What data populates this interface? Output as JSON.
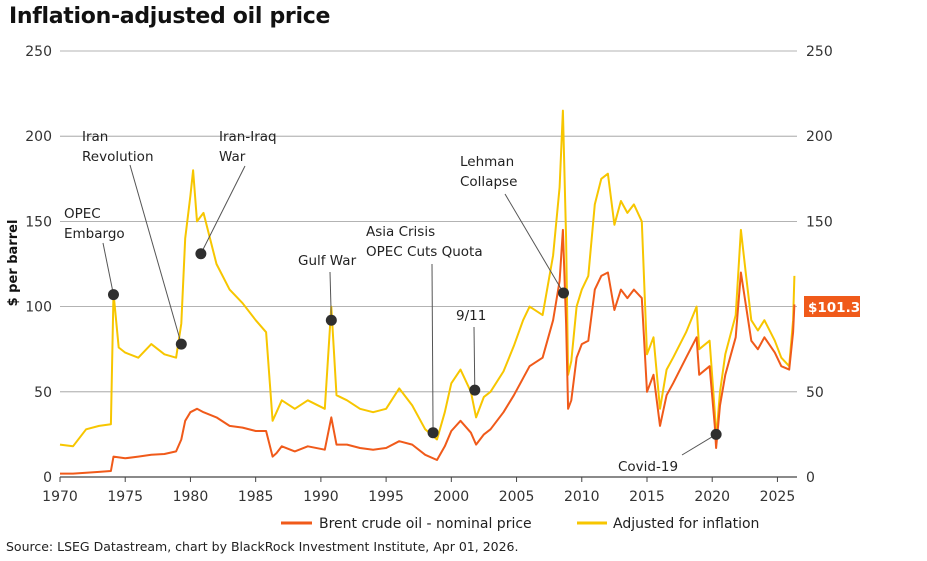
{
  "title": "Inflation-adjusted oil price",
  "source": "Source: LSEG Datastream, chart by BlackRock Investment Institute, Apr 01, 2026.",
  "colors": {
    "nominal": "#f05a1a",
    "adjusted": "#f7c600",
    "grid": "#9a9a9a",
    "axis": "#444444",
    "marker": "#2f2f2f",
    "tag": "#f05a1a"
  },
  "chart_data": {
    "type": "line",
    "title": "Inflation-adjusted oil price",
    "xlabel": "",
    "ylabel": "$ per barrel",
    "xlim": [
      1970,
      2026.5
    ],
    "ylim": [
      0,
      250
    ],
    "x_ticks": [
      1970,
      1975,
      1980,
      1985,
      1990,
      1995,
      2000,
      2005,
      2010,
      2015,
      2020,
      2025
    ],
    "y_ticks": [
      0,
      50,
      100,
      150,
      200,
      250
    ],
    "legend": "bottom",
    "series": [
      {
        "name": "Brent crude oil - nominal price",
        "color": "#f05a1a",
        "points": [
          [
            1970,
            2
          ],
          [
            1971,
            2
          ],
          [
            1972,
            2.5
          ],
          [
            1973,
            3
          ],
          [
            1973.9,
            3.5
          ],
          [
            1974.1,
            12
          ],
          [
            1975,
            11
          ],
          [
            1976,
            12
          ],
          [
            1977,
            13
          ],
          [
            1978,
            13.5
          ],
          [
            1978.9,
            15
          ],
          [
            1979.3,
            22
          ],
          [
            1979.6,
            33
          ],
          [
            1980,
            38
          ],
          [
            1980.5,
            40
          ],
          [
            1981,
            38
          ],
          [
            1982,
            35
          ],
          [
            1983,
            30
          ],
          [
            1984,
            29
          ],
          [
            1985,
            27
          ],
          [
            1985.8,
            27
          ],
          [
            1986.3,
            12
          ],
          [
            1986.6,
            14
          ],
          [
            1987,
            18
          ],
          [
            1988,
            15
          ],
          [
            1989,
            18
          ],
          [
            1990.3,
            16
          ],
          [
            1990.8,
            35
          ],
          [
            1991.2,
            19
          ],
          [
            1992,
            19
          ],
          [
            1993,
            17
          ],
          [
            1994,
            16
          ],
          [
            1995,
            17
          ],
          [
            1996,
            21
          ],
          [
            1997,
            19
          ],
          [
            1998,
            13
          ],
          [
            1998.9,
            10
          ],
          [
            1999.5,
            18
          ],
          [
            2000,
            27
          ],
          [
            2000.7,
            33
          ],
          [
            2001.5,
            26
          ],
          [
            2001.9,
            19
          ],
          [
            2002.5,
            25
          ],
          [
            2003,
            28
          ],
          [
            2004,
            38
          ],
          [
            2004.8,
            48
          ],
          [
            2005.5,
            58
          ],
          [
            2006,
            65
          ],
          [
            2007,
            70
          ],
          [
            2007.8,
            92
          ],
          [
            2008.3,
            115
          ],
          [
            2008.55,
            145
          ],
          [
            2008.8,
            90
          ],
          [
            2008.95,
            40
          ],
          [
            2009.2,
            45
          ],
          [
            2009.6,
            70
          ],
          [
            2010,
            78
          ],
          [
            2010.5,
            80
          ],
          [
            2011,
            110
          ],
          [
            2011.5,
            118
          ],
          [
            2012,
            120
          ],
          [
            2012.5,
            98
          ],
          [
            2013,
            110
          ],
          [
            2013.5,
            105
          ],
          [
            2014,
            110
          ],
          [
            2014.6,
            105
          ],
          [
            2015,
            50
          ],
          [
            2015.5,
            60
          ],
          [
            2016,
            30
          ],
          [
            2016.5,
            48
          ],
          [
            2017,
            55
          ],
          [
            2018,
            70
          ],
          [
            2018.8,
            82
          ],
          [
            2019,
            60
          ],
          [
            2019.8,
            65
          ],
          [
            2020.2,
            30
          ],
          [
            2020.3,
            17
          ],
          [
            2020.6,
            42
          ],
          [
            2021,
            60
          ],
          [
            2021.8,
            82
          ],
          [
            2022.2,
            120
          ],
          [
            2022.6,
            100
          ],
          [
            2023,
            80
          ],
          [
            2023.5,
            75
          ],
          [
            2024,
            82
          ],
          [
            2024.8,
            73
          ],
          [
            2025.3,
            65
          ],
          [
            2025.9,
            63
          ],
          [
            2026.2,
            85
          ],
          [
            2026.3,
            101.3
          ]
        ]
      },
      {
        "name": "Adjusted for inflation",
        "color": "#f7c600",
        "points": [
          [
            1970,
            19
          ],
          [
            1971,
            18
          ],
          [
            1972,
            28
          ],
          [
            1973,
            30
          ],
          [
            1973.9,
            31
          ],
          [
            1974.1,
            108
          ],
          [
            1974.5,
            76
          ],
          [
            1975,
            73
          ],
          [
            1976,
            70
          ],
          [
            1977,
            78
          ],
          [
            1978,
            72
          ],
          [
            1978.9,
            70
          ],
          [
            1979.3,
            90
          ],
          [
            1979.6,
            140
          ],
          [
            1980,
            165
          ],
          [
            1980.2,
            180
          ],
          [
            1980.5,
            150
          ],
          [
            1981,
            155
          ],
          [
            1982,
            125
          ],
          [
            1983,
            110
          ],
          [
            1984,
            102
          ],
          [
            1985,
            92
          ],
          [
            1985.8,
            85
          ],
          [
            1986.3,
            33
          ],
          [
            1986.6,
            38
          ],
          [
            1987,
            45
          ],
          [
            1988,
            40
          ],
          [
            1989,
            45
          ],
          [
            1990.3,
            40
          ],
          [
            1990.8,
            100
          ],
          [
            1991.2,
            48
          ],
          [
            1992,
            45
          ],
          [
            1993,
            40
          ],
          [
            1994,
            38
          ],
          [
            1995,
            40
          ],
          [
            1996,
            52
          ],
          [
            1997,
            42
          ],
          [
            1998,
            28
          ],
          [
            1998.9,
            22
          ],
          [
            1999.5,
            38
          ],
          [
            2000,
            55
          ],
          [
            2000.7,
            63
          ],
          [
            2001.5,
            50
          ],
          [
            2001.9,
            35
          ],
          [
            2002.5,
            47
          ],
          [
            2003,
            50
          ],
          [
            2004,
            62
          ],
          [
            2004.8,
            77
          ],
          [
            2005.5,
            92
          ],
          [
            2006,
            100
          ],
          [
            2007,
            95
          ],
          [
            2007.8,
            130
          ],
          [
            2008.3,
            170
          ],
          [
            2008.55,
            215
          ],
          [
            2008.8,
            140
          ],
          [
            2008.95,
            60
          ],
          [
            2009.2,
            68
          ],
          [
            2009.6,
            100
          ],
          [
            2010,
            110
          ],
          [
            2010.5,
            118
          ],
          [
            2011,
            160
          ],
          [
            2011.5,
            175
          ],
          [
            2012,
            178
          ],
          [
            2012.5,
            148
          ],
          [
            2013,
            162
          ],
          [
            2013.5,
            155
          ],
          [
            2014,
            160
          ],
          [
            2014.6,
            150
          ],
          [
            2015,
            72
          ],
          [
            2015.5,
            82
          ],
          [
            2016,
            40
          ],
          [
            2016.5,
            63
          ],
          [
            2017,
            70
          ],
          [
            2018,
            85
          ],
          [
            2018.8,
            100
          ],
          [
            2019,
            75
          ],
          [
            2019.8,
            80
          ],
          [
            2020.2,
            38
          ],
          [
            2020.3,
            22
          ],
          [
            2020.6,
            50
          ],
          [
            2021,
            72
          ],
          [
            2021.8,
            95
          ],
          [
            2022.2,
            145
          ],
          [
            2022.6,
            118
          ],
          [
            2023,
            92
          ],
          [
            2023.5,
            86
          ],
          [
            2024,
            92
          ],
          [
            2024.8,
            80
          ],
          [
            2025.3,
            70
          ],
          [
            2025.9,
            65
          ],
          [
            2026.2,
            92
          ],
          [
            2026.3,
            118
          ]
        ]
      }
    ],
    "annotations": [
      {
        "label": "OPEC\nEmbargo",
        "x": 1974.1,
        "y": 107
      },
      {
        "label": "Iran\nRevolution",
        "x": 1979.3,
        "y": 78
      },
      {
        "label": "Iran-Iraq\nWar",
        "x": 1980.8,
        "y": 131
      },
      {
        "label": "Gulf War",
        "x": 1990.8,
        "y": 92
      },
      {
        "label": "Asia Crisis\nOPEC Cuts Quota",
        "x": 1998.6,
        "y": 26
      },
      {
        "label": "9/11",
        "x": 2001.8,
        "y": 51
      },
      {
        "label": "Lehman\nCollapse",
        "x": 2008.6,
        "y": 108
      },
      {
        "label": "Covid-19",
        "x": 2020.3,
        "y": 25
      }
    ],
    "latest_value_label": "$101.3",
    "latest_value": 101.3
  }
}
